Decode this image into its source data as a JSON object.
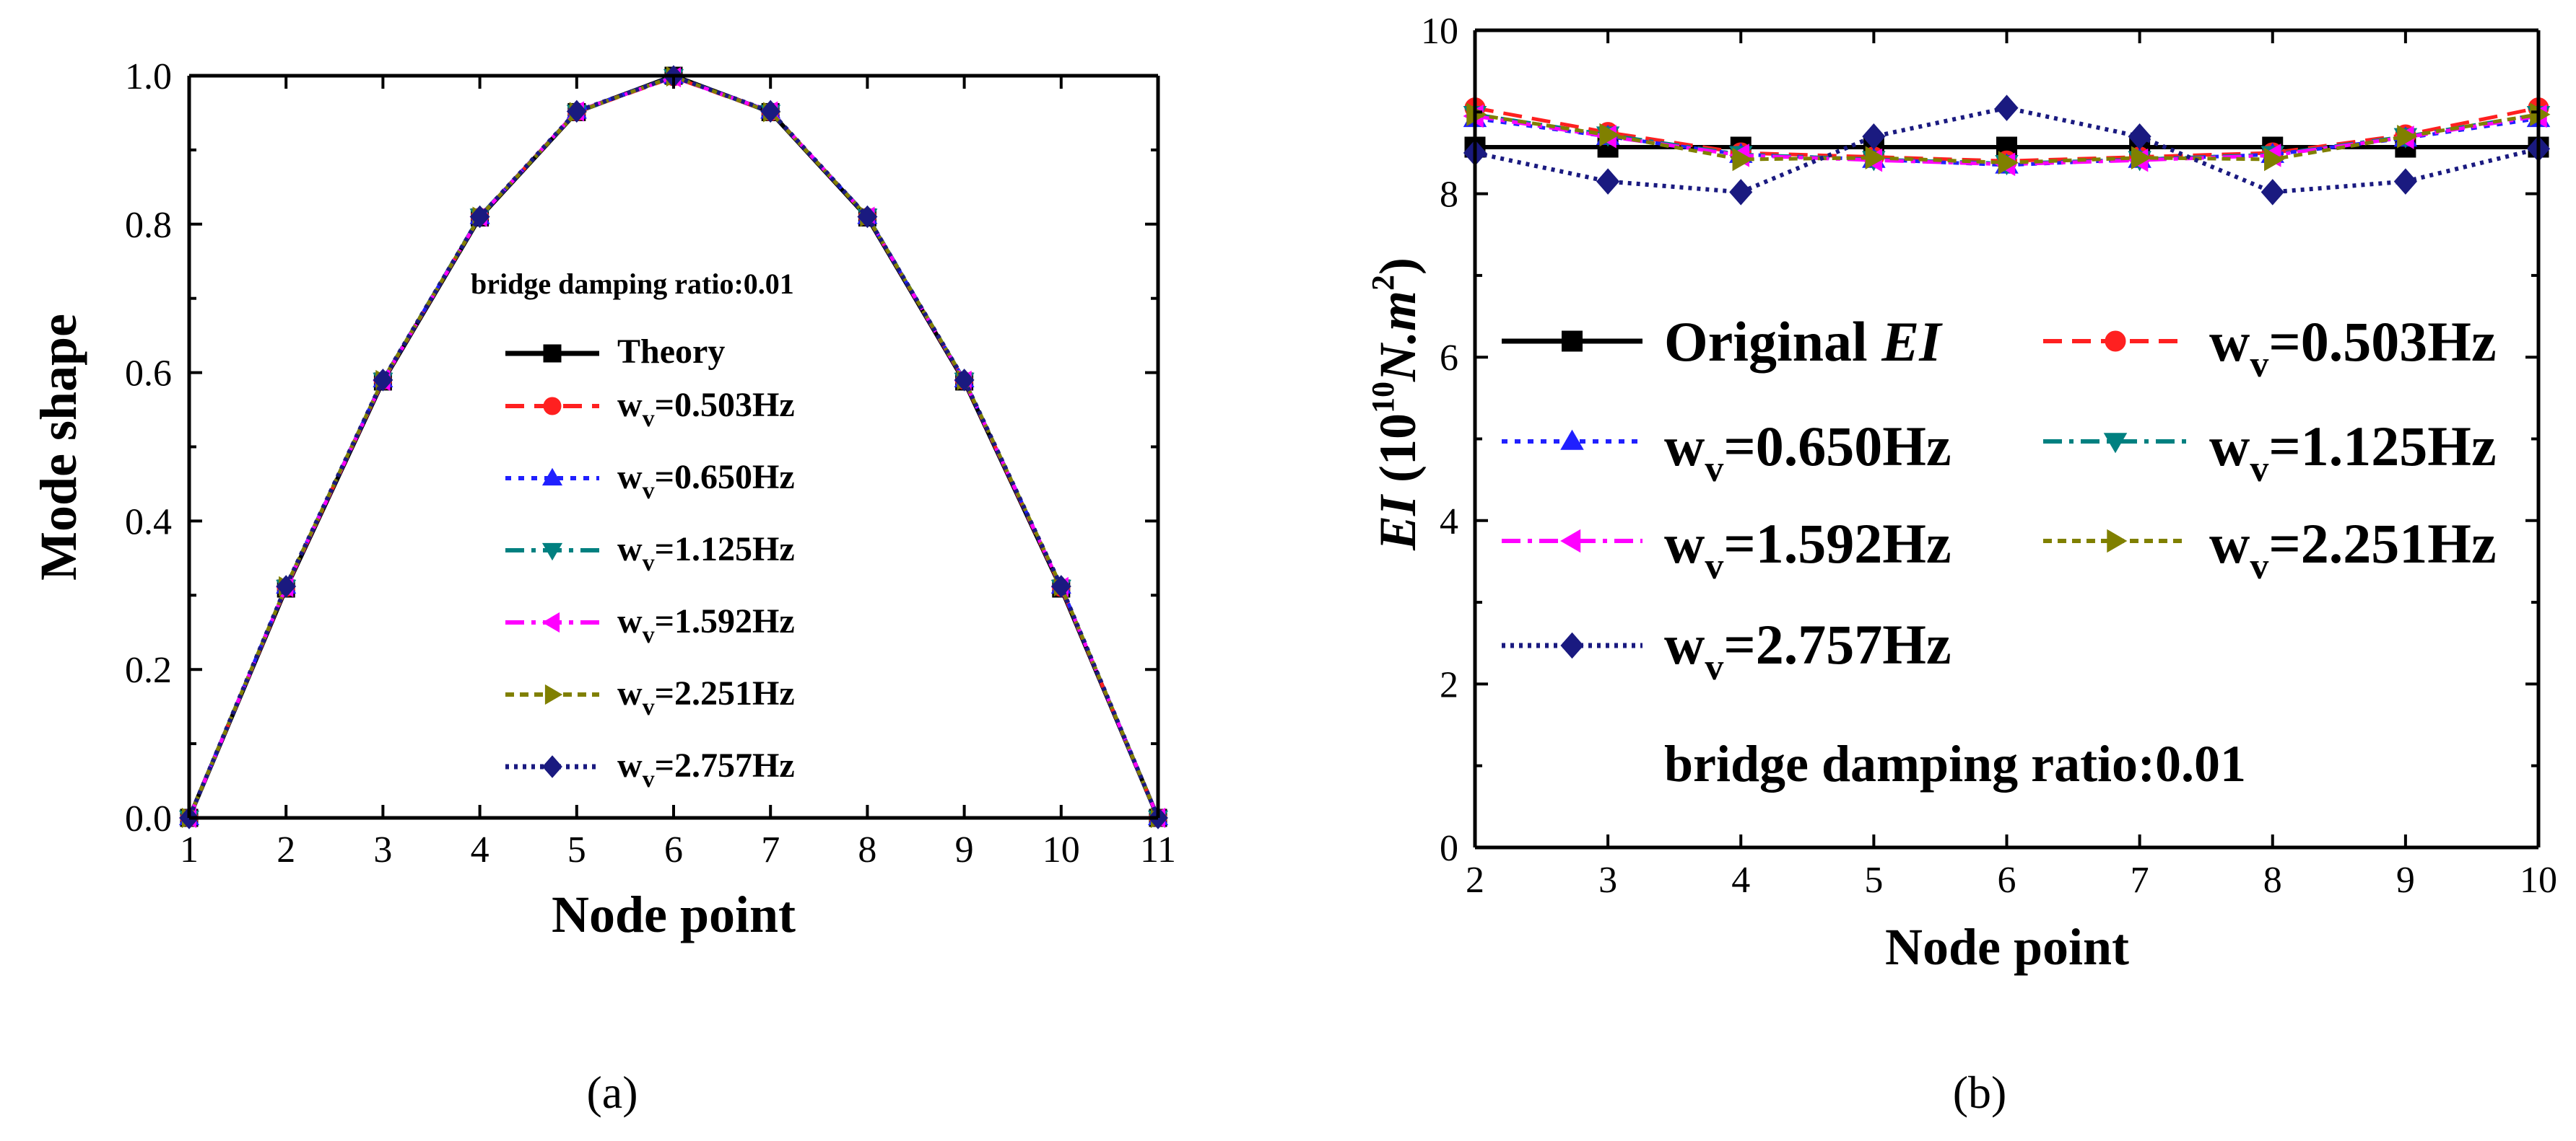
{
  "series_styles": [
    {
      "color": "#000000",
      "dash": "",
      "marker": "square",
      "width": 6
    },
    {
      "color": "#ff2020",
      "dash": "26,14",
      "marker": "circle",
      "width": 5
    },
    {
      "color": "#2020ff",
      "dash": "8,10",
      "marker": "triangle-up",
      "width": 5
    },
    {
      "color": "#008080",
      "dash": "26,10,6,10",
      "marker": "triangle-down",
      "width": 5
    },
    {
      "color": "#ff00ff",
      "dash": "26,10,6,10",
      "marker": "triangle-left",
      "width": 5
    },
    {
      "color": "#808000",
      "dash": "12,8",
      "marker": "triangle-right",
      "width": 5
    },
    {
      "color": "#1a1a80",
      "dash": "5,7",
      "marker": "diamond",
      "width": 6
    }
  ],
  "chart_data": [
    {
      "type": "line",
      "panel_label": "(a)",
      "annotation": "bridge damping ratio:0.01",
      "xlabel": "Node point",
      "ylabel": "Mode shape",
      "xlim": [
        1,
        11
      ],
      "ylim": [
        0.0,
        1.0
      ],
      "x_ticks": [
        "1",
        "2",
        "3",
        "4",
        "5",
        "6",
        "7",
        "8",
        "9",
        "10",
        "11"
      ],
      "y_ticks": [
        "0.0",
        "0.2",
        "0.4",
        "0.6",
        "0.8",
        "1.0"
      ],
      "x": [
        1,
        2,
        3,
        4,
        5,
        6,
        7,
        8,
        9,
        10,
        11
      ],
      "series": [
        {
          "name": "Theory",
          "values": [
            0.0,
            0.309,
            0.588,
            0.809,
            0.951,
            1.0,
            0.951,
            0.809,
            0.588,
            0.309,
            0.0
          ]
        },
        {
          "name_main": "w",
          "name_sub": "v",
          "name_rest": "=0.503Hz",
          "values": [
            0.0,
            0.31,
            0.589,
            0.81,
            0.951,
            0.998,
            0.951,
            0.81,
            0.589,
            0.31,
            0.0
          ]
        },
        {
          "name_main": "w",
          "name_sub": "v",
          "name_rest": "=0.650Hz",
          "values": [
            0.0,
            0.312,
            0.59,
            0.81,
            0.952,
            0.999,
            0.952,
            0.81,
            0.59,
            0.312,
            0.0
          ]
        },
        {
          "name_main": "w",
          "name_sub": "v",
          "name_rest": "=1.125Hz",
          "values": [
            0.0,
            0.311,
            0.59,
            0.811,
            0.951,
            0.999,
            0.951,
            0.811,
            0.59,
            0.311,
            0.0
          ]
        },
        {
          "name_main": "w",
          "name_sub": "v",
          "name_rest": "=1.592Hz",
          "values": [
            0.0,
            0.311,
            0.589,
            0.81,
            0.952,
            0.998,
            0.952,
            0.81,
            0.589,
            0.311,
            0.0
          ]
        },
        {
          "name_main": "w",
          "name_sub": "v",
          "name_rest": "=2.251Hz",
          "values": [
            0.0,
            0.312,
            0.59,
            0.81,
            0.951,
            0.999,
            0.951,
            0.81,
            0.59,
            0.312,
            0.0
          ]
        },
        {
          "name_main": "w",
          "name_sub": "v",
          "name_rest": "=2.757Hz",
          "values": [
            0.0,
            0.312,
            0.59,
            0.81,
            0.952,
            0.999,
            0.952,
            0.81,
            0.59,
            0.312,
            0.0
          ]
        }
      ]
    },
    {
      "type": "line",
      "panel_label": "(b)",
      "annotation": "bridge damping ratio:0.01",
      "xlabel": "Node point",
      "ylabel_main": "EI",
      "ylabel_unit_a": " (10",
      "ylabel_unit_exp": "10",
      "ylabel_unit_b": "N.m",
      "ylabel_unit_exp2": "2",
      "ylabel_unit_c": ")",
      "xlim": [
        2,
        10
      ],
      "ylim": [
        0,
        10
      ],
      "x_ticks": [
        "2",
        "3",
        "4",
        "5",
        "6",
        "7",
        "8",
        "9",
        "10"
      ],
      "y_ticks": [
        "0",
        "2",
        "4",
        "6",
        "8",
        "10"
      ],
      "x": [
        2,
        3,
        4,
        5,
        6,
        7,
        8,
        9,
        10
      ],
      "series": [
        {
          "name_main": "Original ",
          "name_italic": "EI",
          "values": [
            8.57,
            8.57,
            8.57,
            8.57,
            8.57,
            8.57,
            8.57,
            8.57,
            8.57
          ]
        },
        {
          "name_main": "w",
          "name_sub": "v",
          "name_rest": "=0.503Hz",
          "values": [
            9.05,
            8.75,
            8.5,
            8.45,
            8.4,
            8.45,
            8.5,
            8.72,
            9.05
          ]
        },
        {
          "name_main": "w",
          "name_sub": "v",
          "name_rest": "=0.650Hz",
          "values": [
            8.92,
            8.7,
            8.48,
            8.42,
            8.35,
            8.42,
            8.48,
            8.68,
            8.92
          ]
        },
        {
          "name_main": "w",
          "name_sub": "v",
          "name_rest": "=1.125Hz",
          "values": [
            8.97,
            8.72,
            8.48,
            8.42,
            8.37,
            8.42,
            8.48,
            8.7,
            8.97
          ]
        },
        {
          "name_main": "w",
          "name_sub": "v",
          "name_rest": "=1.592Hz",
          "values": [
            8.95,
            8.7,
            8.47,
            8.41,
            8.36,
            8.41,
            8.47,
            8.69,
            8.95
          ]
        },
        {
          "name_main": "w",
          "name_sub": "v",
          "name_rest": "=2.251Hz",
          "values": [
            8.97,
            8.72,
            8.42,
            8.44,
            8.38,
            8.44,
            8.42,
            8.7,
            8.97
          ]
        },
        {
          "name_main": "w",
          "name_sub": "v",
          "name_rest": "=2.757Hz",
          "values": [
            8.5,
            8.15,
            8.02,
            8.7,
            9.05,
            8.7,
            8.02,
            8.15,
            8.55
          ]
        }
      ]
    }
  ]
}
